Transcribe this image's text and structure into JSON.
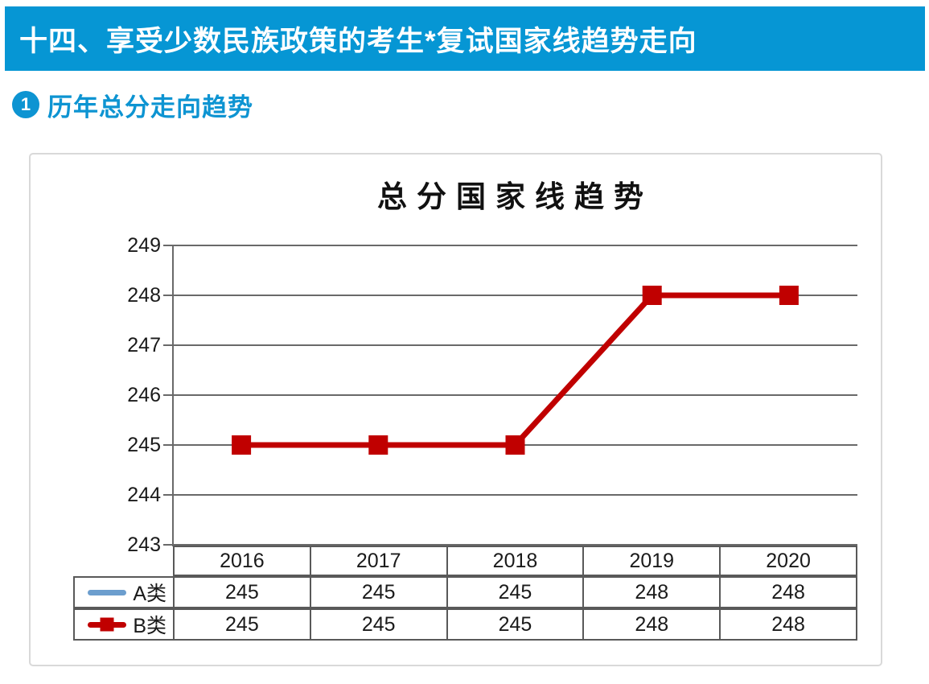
{
  "page": {
    "header_title": "十四、享受少数民族政策的考生*复试国家线趋势走向",
    "section": {
      "number": "1",
      "title": "历年总分走向趋势"
    }
  },
  "colors": {
    "banner_bg": "#0696D4",
    "accent_blue": "#0D94D2",
    "grid": "#696969",
    "table_border": "#595959",
    "text_dark": "#1a1a1a",
    "panel_border": "#D9D9D9"
  },
  "chart_data": {
    "type": "line",
    "title": "总分国家线趋势",
    "categories": [
      "2016",
      "2017",
      "2018",
      "2019",
      "2020"
    ],
    "series": [
      {
        "name": "A类",
        "values": [
          245,
          245,
          245,
          248,
          248
        ],
        "color": "#6C9ECE",
        "marker": "none"
      },
      {
        "name": "B类",
        "values": [
          245,
          245,
          245,
          248,
          248
        ],
        "color": "#C00000",
        "marker": "square"
      }
    ],
    "ylim": [
      243,
      249
    ],
    "ytick_step": 1,
    "grid": true,
    "legend_position": "table-left",
    "xlabel": "",
    "ylabel": ""
  }
}
